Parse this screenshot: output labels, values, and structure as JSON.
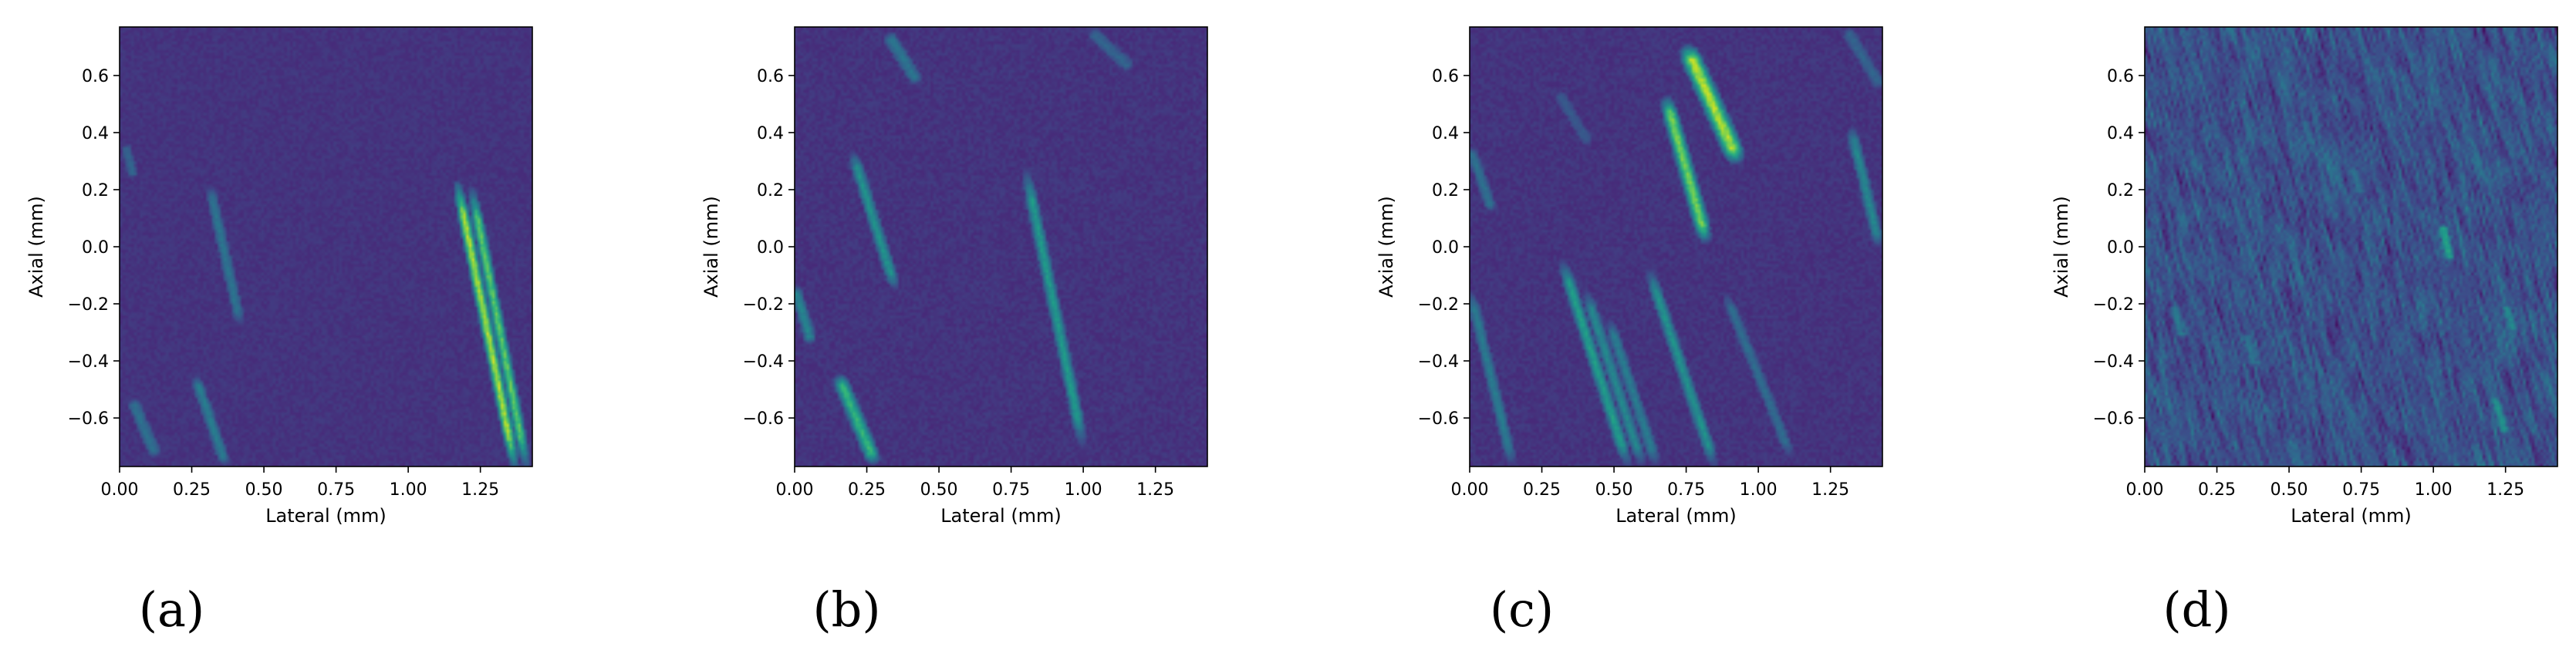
{
  "colors": {
    "colormap": [
      "#440154",
      "#482878",
      "#3e4a89",
      "#31688e",
      "#26828e",
      "#1f9e89",
      "#35b779",
      "#6ece58",
      "#b5de2b",
      "#fde725"
    ],
    "axis": "#000000",
    "background": "#ffffff"
  },
  "chart_data": [
    {
      "type": "heatmap",
      "panel_label": "(a)",
      "xlabel": "Lateral (mm)",
      "ylabel": "Axial (mm)",
      "xlim": [
        0,
        1.43
      ],
      "ylim": [
        -0.77,
        0.77
      ],
      "xticks": [
        0.0,
        0.25,
        0.5,
        0.75,
        1.0,
        1.25
      ],
      "xtick_labels": [
        "0.00",
        "0.25",
        "0.50",
        "0.75",
        "1.00",
        "1.25"
      ],
      "yticks": [
        0.6,
        0.4,
        0.2,
        0.0,
        -0.2,
        -0.4,
        -0.6
      ],
      "ytick_labels": [
        "0.6",
        "0.4",
        "0.2",
        "0.0",
        "−0.2",
        "−0.4",
        "−0.6"
      ],
      "background_level": 0.15,
      "noise_level": 0.06,
      "grain": "fine",
      "streaks": [
        {
          "x0": 1.17,
          "y0": 0.22,
          "x1": 1.37,
          "y1": -0.77,
          "level": 0.95,
          "width": 0.012
        },
        {
          "x0": 1.22,
          "y0": 0.2,
          "x1": 1.41,
          "y1": -0.77,
          "level": 0.8,
          "width": 0.012
        },
        {
          "x0": 0.31,
          "y0": 0.22,
          "x1": 0.42,
          "y1": -0.28,
          "level": 0.42,
          "width": 0.014
        },
        {
          "x0": 0.26,
          "y0": -0.45,
          "x1": 0.37,
          "y1": -0.77,
          "level": 0.45,
          "width": 0.014
        },
        {
          "x0": 0.04,
          "y0": -0.53,
          "x1": 0.13,
          "y1": -0.74,
          "level": 0.4,
          "width": 0.016
        },
        {
          "x0": 0.02,
          "y0": 0.36,
          "x1": 0.05,
          "y1": 0.24,
          "level": 0.35,
          "width": 0.014
        }
      ]
    },
    {
      "type": "heatmap",
      "panel_label": "(b)",
      "xlabel": "Lateral (mm)",
      "ylabel": "Axial (mm)",
      "xlim": [
        0,
        1.43
      ],
      "ylim": [
        -0.77,
        0.77
      ],
      "xticks": [
        0.0,
        0.25,
        0.5,
        0.75,
        1.0,
        1.25
      ],
      "xtick_labels": [
        "0.00",
        "0.25",
        "0.50",
        "0.75",
        "1.00",
        "1.25"
      ],
      "yticks": [
        0.6,
        0.4,
        0.2,
        0.0,
        -0.2,
        -0.4,
        -0.6
      ],
      "ytick_labels": [
        "0.6",
        "0.4",
        "0.2",
        "0.0",
        "−0.2",
        "−0.4",
        "−0.6"
      ],
      "background_level": 0.15,
      "noise_level": 0.07,
      "grain": "fine",
      "streaks": [
        {
          "x0": 0.8,
          "y0": 0.27,
          "x1": 1.0,
          "y1": -0.7,
          "level": 0.58,
          "width": 0.014
        },
        {
          "x0": 0.2,
          "y0": 0.33,
          "x1": 0.35,
          "y1": -0.15,
          "level": 0.55,
          "width": 0.014
        },
        {
          "x0": 0.15,
          "y0": -0.45,
          "x1": 0.28,
          "y1": -0.76,
          "level": 0.7,
          "width": 0.016
        },
        {
          "x0": 0.0,
          "y0": -0.14,
          "x1": 0.06,
          "y1": -0.34,
          "level": 0.5,
          "width": 0.014
        },
        {
          "x0": 0.32,
          "y0": 0.75,
          "x1": 0.43,
          "y1": 0.57,
          "level": 0.42,
          "width": 0.016
        },
        {
          "x0": 1.02,
          "y0": 0.76,
          "x1": 1.17,
          "y1": 0.62,
          "level": 0.35,
          "width": 0.016
        }
      ]
    },
    {
      "type": "heatmap",
      "panel_label": "(c)",
      "xlabel": "Lateral (mm)",
      "ylabel": "Axial (mm)",
      "xlim": [
        0,
        1.43
      ],
      "ylim": [
        -0.77,
        0.77
      ],
      "xticks": [
        0.0,
        0.25,
        0.5,
        0.75,
        1.0,
        1.25
      ],
      "xtick_labels": [
        "0.00",
        "0.25",
        "0.50",
        "0.75",
        "1.00",
        "1.25"
      ],
      "yticks": [
        0.6,
        0.4,
        0.2,
        0.0,
        -0.2,
        -0.4,
        -0.6
      ],
      "ytick_labels": [
        "0.6",
        "0.4",
        "0.2",
        "0.0",
        "−0.2",
        "−0.4",
        "−0.6"
      ],
      "background_level": 0.15,
      "noise_level": 0.07,
      "grain": "fine",
      "streaks": [
        {
          "x0": 0.75,
          "y0": 0.7,
          "x1": 0.93,
          "y1": 0.3,
          "level": 0.95,
          "width": 0.02
        },
        {
          "x0": 0.68,
          "y0": 0.52,
          "x1": 0.82,
          "y1": 0.02,
          "level": 0.85,
          "width": 0.016
        },
        {
          "x0": 0.62,
          "y0": -0.08,
          "x1": 0.85,
          "y1": -0.77,
          "level": 0.55,
          "width": 0.014
        },
        {
          "x0": 0.32,
          "y0": -0.05,
          "x1": 0.55,
          "y1": -0.77,
          "level": 0.6,
          "width": 0.014
        },
        {
          "x0": 0.4,
          "y0": -0.15,
          "x1": 0.6,
          "y1": -0.77,
          "level": 0.5,
          "width": 0.014
        },
        {
          "x0": 0.48,
          "y0": -0.25,
          "x1": 0.65,
          "y1": -0.77,
          "level": 0.45,
          "width": 0.014
        },
        {
          "x0": 0.0,
          "y0": -0.15,
          "x1": 0.15,
          "y1": -0.77,
          "level": 0.45,
          "width": 0.014
        },
        {
          "x0": 0.0,
          "y0": 0.35,
          "x1": 0.08,
          "y1": 0.12,
          "level": 0.4,
          "width": 0.014
        },
        {
          "x0": 1.32,
          "y0": 0.42,
          "x1": 1.42,
          "y1": 0.0,
          "level": 0.5,
          "width": 0.014
        },
        {
          "x0": 0.88,
          "y0": -0.15,
          "x1": 1.12,
          "y1": -0.75,
          "level": 0.38,
          "width": 0.014
        },
        {
          "x0": 0.3,
          "y0": 0.55,
          "x1": 0.42,
          "y1": 0.35,
          "level": 0.3,
          "width": 0.016
        },
        {
          "x0": 1.3,
          "y0": 0.77,
          "x1": 1.43,
          "y1": 0.55,
          "level": 0.35,
          "width": 0.016
        }
      ]
    },
    {
      "type": "heatmap",
      "panel_label": "(d)",
      "xlabel": "Lateral (mm)",
      "ylabel": "Axial (mm)",
      "xlim": [
        0,
        1.43
      ],
      "ylim": [
        -0.77,
        0.77
      ],
      "xticks": [
        0.0,
        0.25,
        0.5,
        0.75,
        1.0,
        1.25
      ],
      "xtick_labels": [
        "0.00",
        "0.25",
        "0.50",
        "0.75",
        "1.00",
        "1.25"
      ],
      "yticks": [
        0.6,
        0.4,
        0.2,
        0.0,
        -0.2,
        -0.4,
        -0.6
      ],
      "ytick_labels": [
        "0.6",
        "0.4",
        "0.2",
        "0.0",
        "−0.2",
        "−0.4",
        "−0.6"
      ],
      "background_level": 0.2,
      "noise_level": 0.2,
      "grain": "coarse",
      "streaks": [
        {
          "x0": 1.03,
          "y0": 0.08,
          "x1": 1.06,
          "y1": -0.05,
          "level": 0.62,
          "width": 0.012
        },
        {
          "x0": 1.21,
          "y0": -0.52,
          "x1": 1.25,
          "y1": -0.66,
          "level": 0.55,
          "width": 0.012
        },
        {
          "x0": 1.25,
          "y0": -0.2,
          "x1": 1.28,
          "y1": -0.3,
          "level": 0.5,
          "width": 0.012
        },
        {
          "x0": 0.1,
          "y0": -0.2,
          "x1": 0.13,
          "y1": -0.32,
          "level": 0.45,
          "width": 0.012
        },
        {
          "x0": 0.35,
          "y0": -0.3,
          "x1": 0.38,
          "y1": -0.42,
          "level": 0.42,
          "width": 0.012
        },
        {
          "x0": 0.72,
          "y0": 0.28,
          "x1": 0.75,
          "y1": 0.18,
          "level": 0.4,
          "width": 0.012
        },
        {
          "x0": 0.55,
          "y0": 0.45,
          "x1": 0.58,
          "y1": 0.35,
          "level": 0.38,
          "width": 0.012
        }
      ]
    }
  ]
}
